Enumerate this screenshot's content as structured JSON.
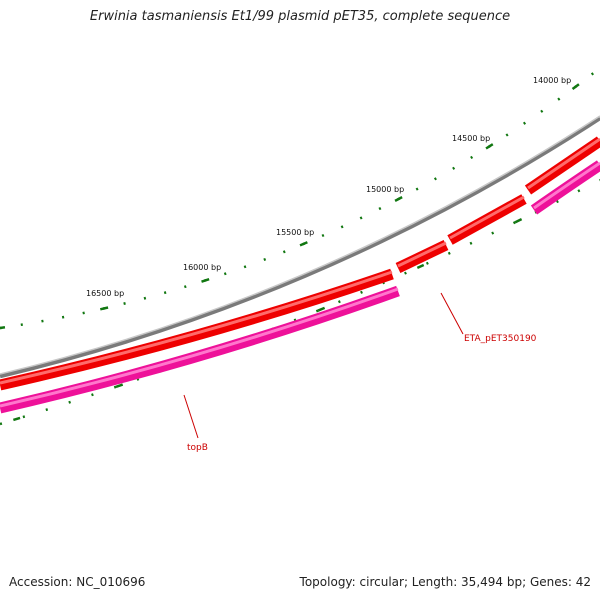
{
  "title": "Erwinia tasmaniensis Et1/99 plasmid pET35, complete sequence",
  "footer": {
    "accession": "Accession: NC_010696",
    "stats": "Topology: circular; Length: 35,494 bp; Genes: 42"
  },
  "map": {
    "scale_labels": [
      "14000 bp",
      "14500 bp",
      "15000 bp",
      "15500 bp",
      "16000 bp",
      "16500 bp"
    ],
    "gene_labels": [
      {
        "id": "eta",
        "text": "ETA_pET350190"
      },
      {
        "id": "topb",
        "text": "topB"
      }
    ],
    "colors": {
      "backbone": "#7a7a7a",
      "forward_genes": "#ee0000",
      "reverse_genes": "#ee1199",
      "ticks": "#117711",
      "gene_label": "#cc0000"
    }
  }
}
